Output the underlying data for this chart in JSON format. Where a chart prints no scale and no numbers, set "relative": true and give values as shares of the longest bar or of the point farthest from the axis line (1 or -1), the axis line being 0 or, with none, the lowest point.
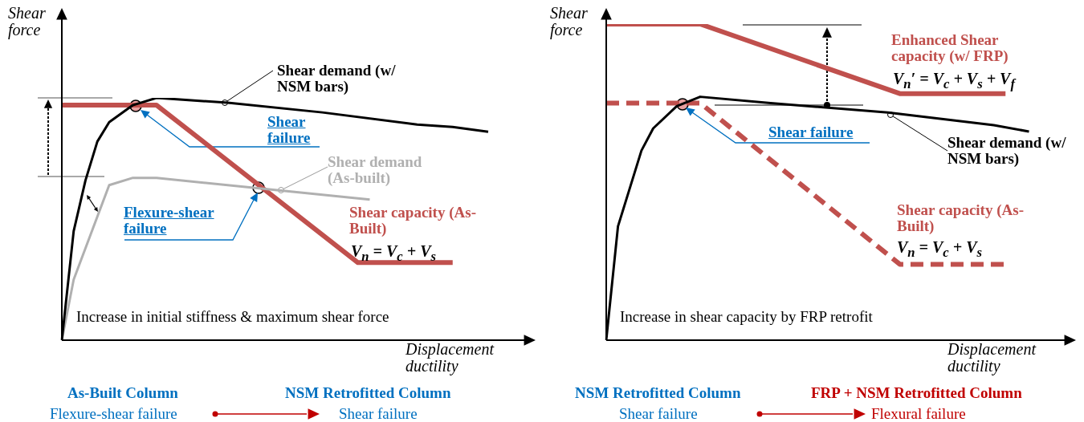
{
  "chart_data": [
    {
      "type": "line",
      "relative": true,
      "xlabel": "Displacement ductility",
      "ylabel": "Shear force",
      "categories": [
        null,
        null,
        null,
        null,
        null,
        null,
        null,
        null,
        null,
        null,
        null,
        null,
        null,
        null,
        null,
        null,
        null,
        null,
        null,
        null,
        null,
        null,
        null,
        null,
        null,
        null,
        null,
        null,
        null,
        null,
        null,
        null,
        null,
        null,
        null,
        null,
        null,
        null,
        null,
        null,
        null
      ],
      "series": [
        {
          "name": "Shear demand (w/ NSM bars)",
          "color": "#000000",
          "values": [
            0,
            0.45,
            0.66,
            0.82,
            0.9,
            null,
            0.97,
            null,
            1,
            null,
            null,
            null,
            null,
            null,
            0.98,
            null,
            null,
            null,
            null,
            null,
            null,
            null,
            0.94,
            null,
            null,
            null,
            null,
            null,
            null,
            null,
            0.89,
            null,
            null,
            0.88,
            null,
            null,
            0.86,
            null,
            null,
            null,
            null
          ]
        },
        {
          "name": "Shear demand (As-built)",
          "color": "#b0b0b0",
          "values": [
            0,
            0.25,
            0.38,
            null,
            0.64,
            null,
            0.67,
            null,
            0.67,
            null,
            null,
            null,
            null,
            null,
            null,
            null,
            0.63,
            null,
            null,
            null,
            null,
            null,
            null,
            null,
            null,
            null,
            0.58,
            null,
            null,
            null,
            null,
            null,
            null,
            null,
            null,
            null,
            null,
            null,
            null,
            null,
            null
          ]
        },
        {
          "name": "Shear capacity (As-Built)",
          "color": "#c0504d",
          "values": [
            0.97,
            null,
            null,
            null,
            null,
            null,
            null,
            null,
            0.97,
            null,
            null,
            null,
            null,
            null,
            null,
            null,
            null,
            null,
            null,
            null,
            null,
            null,
            null,
            null,
            null,
            0.32,
            null,
            null,
            null,
            null,
            null,
            null,
            null,
            0.32,
            null,
            null,
            null,
            null,
            null,
            null,
            null
          ]
        }
      ],
      "annotations": [
        "V$_{n}$ = V$_{c}$ + V$_{s}$",
        "Shear failure",
        "Flexure-shear failure",
        "Increase in initial stiffness & maximum shear force",
        "As-Built Column",
        "Flexure-shear failure",
        "NSM Retrofitted Column",
        "Shear failure"
      ]
    },
    {
      "type": "line",
      "relative": true,
      "xlabel": "Displacement ductility",
      "ylabel": "Shear force",
      "categories": [
        null,
        null,
        null,
        null,
        null,
        null,
        null,
        null,
        null,
        null,
        null,
        null,
        null,
        null,
        null,
        null,
        null,
        null,
        null,
        null,
        null,
        null,
        null,
        null,
        null,
        null,
        null,
        null,
        null,
        null,
        null,
        null,
        null,
        null,
        null,
        null,
        null,
        null,
        null,
        null,
        null
      ],
      "series": [
        {
          "name": "Shear demand (w/ NSM bars)",
          "color": "#000000",
          "values": [
            0,
            0.36,
            0.48,
            0.6,
            0.67,
            null,
            0.74,
            null,
            0.77,
            null,
            null,
            null,
            null,
            null,
            0.75,
            null,
            null,
            null,
            null,
            null,
            null,
            null,
            null,
            null,
            0.72,
            null,
            null,
            null,
            null,
            null,
            null,
            null,
            null,
            0.68,
            null,
            null,
            0.66,
            null,
            null,
            null,
            null
          ]
        },
        {
          "name": "Enhanced Shear capacity (w/ FRP)",
          "color": "#c0504d",
          "values": [
            1,
            null,
            null,
            null,
            null,
            null,
            null,
            null,
            1,
            null,
            null,
            null,
            null,
            null,
            null,
            null,
            null,
            null,
            null,
            null,
            null,
            null,
            null,
            null,
            null,
            0.78,
            null,
            null,
            null,
            null,
            null,
            null,
            null,
            null,
            0.78,
            null,
            null,
            null,
            null,
            null,
            null
          ]
        },
        {
          "name": "Shear capacity (As-Built)",
          "color": "#c0504d",
          "line_style": "dashed",
          "values": [
            0.75,
            null,
            null,
            null,
            null,
            null,
            null,
            null,
            0.75,
            null,
            null,
            null,
            null,
            null,
            null,
            null,
            null,
            null,
            null,
            null,
            null,
            null,
            null,
            null,
            null,
            0.24,
            null,
            null,
            null,
            null,
            null,
            null,
            null,
            null,
            0.24,
            null,
            null,
            null,
            null,
            null,
            null
          ]
        }
      ],
      "annotations": [
        "V$_{n}$′ = V$_{c}$ + V$_{s}$ + V$_{f}$",
        "V$_{n}$ = V$_{c}$ + V$_{s}$",
        "Shear failure",
        "Increase in shear capacity by FRP retrofit",
        "NSM Retrofitted Column",
        "Shear failure",
        "FRP + NSM Retrofitted Column",
        "Flexural failure"
      ]
    }
  ]
}
